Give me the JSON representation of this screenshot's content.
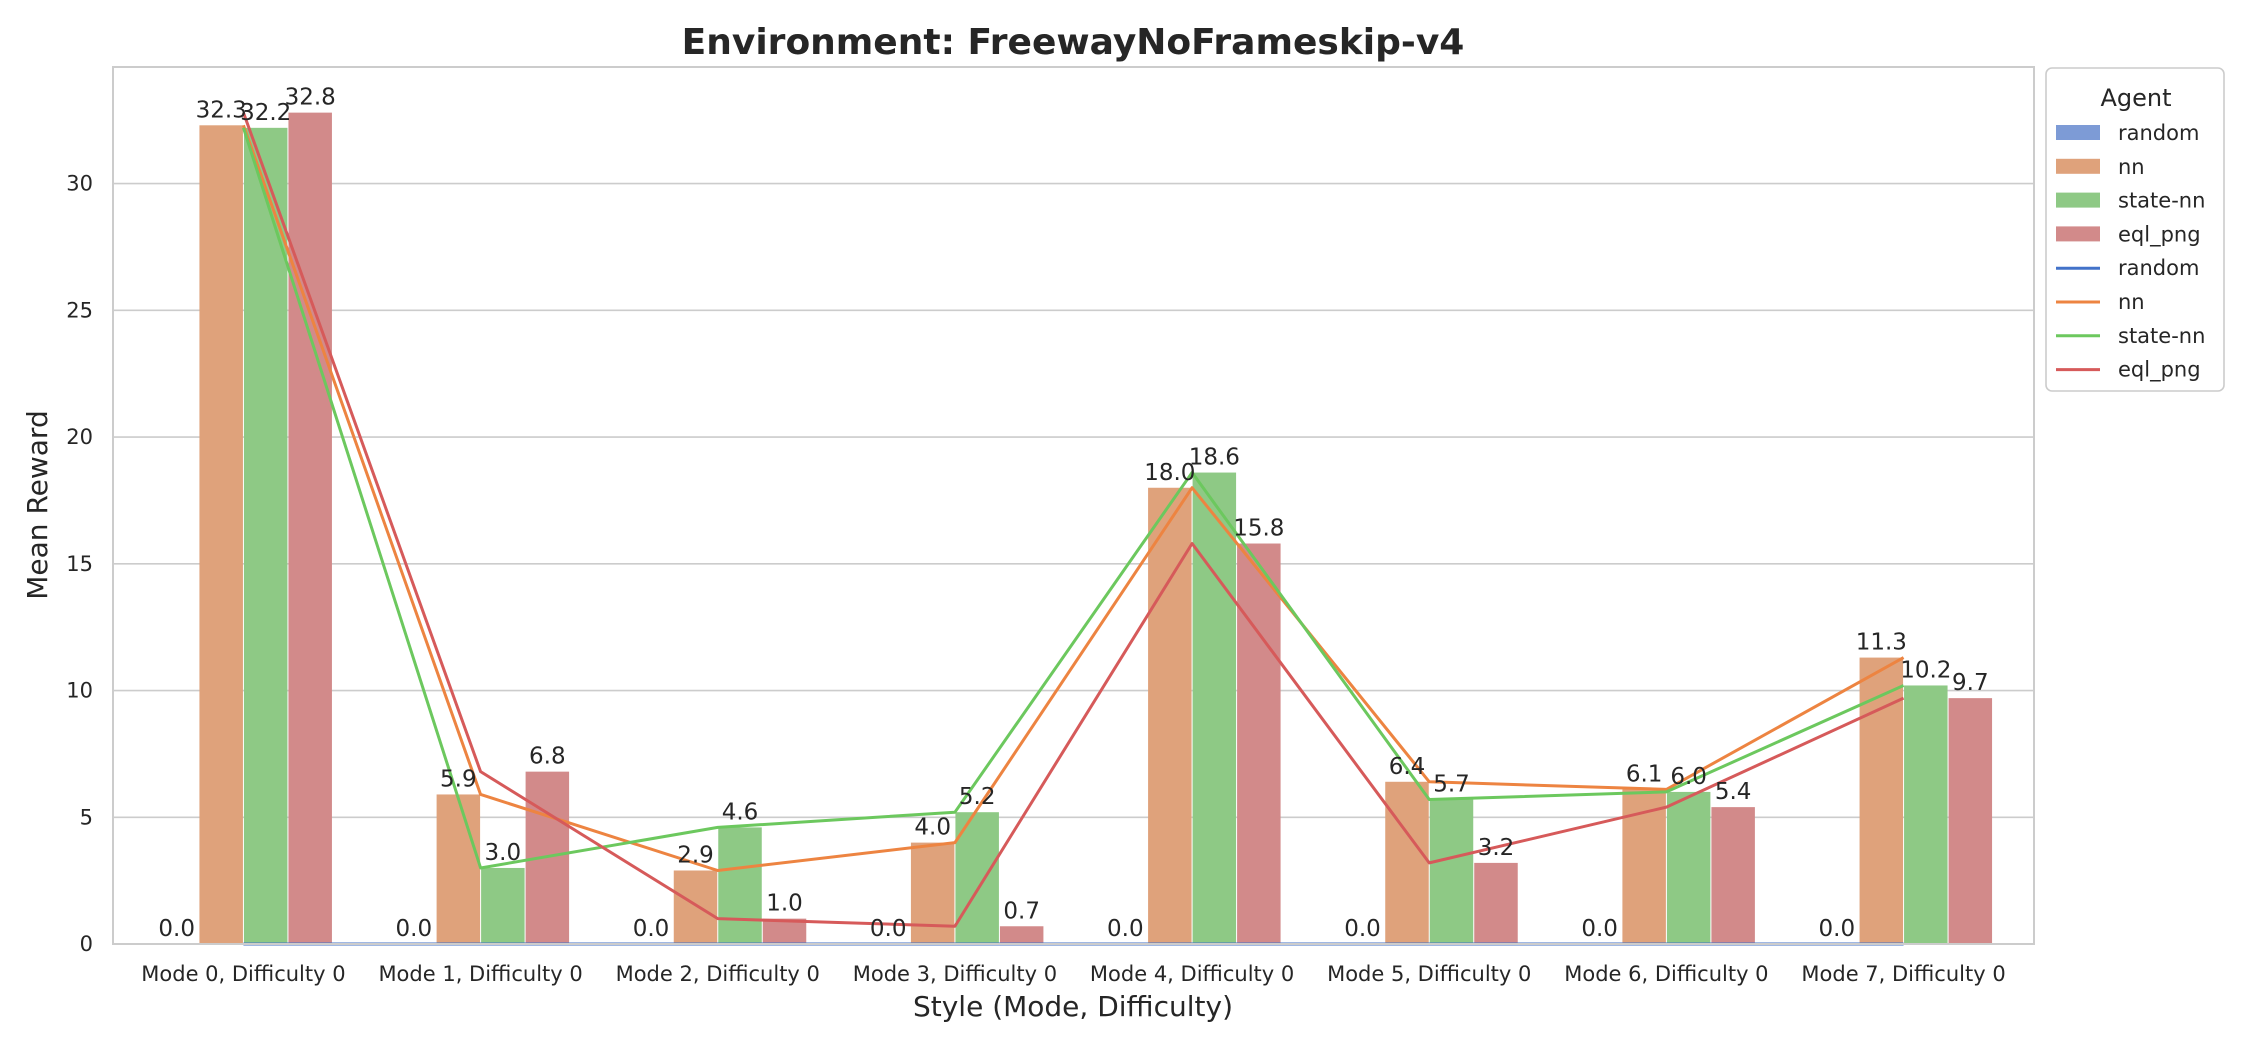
{
  "chart_data": {
    "type": "bar",
    "title": "Environment: FreewayNoFrameskip-v4",
    "xlabel": "Style (Mode, Difficulty)",
    "ylabel": "Mean Reward",
    "ylim": [
      0,
      34.6
    ],
    "yticks": [
      0,
      5,
      10,
      15,
      20,
      25,
      30
    ],
    "grid": true,
    "legend_placement": "outside-right",
    "legend_title": "Agent",
    "categories": [
      "Mode 0, Difficulty 0",
      "Mode 1, Difficulty 0",
      "Mode 2, Difficulty 0",
      "Mode 3, Difficulty 0",
      "Mode 4, Difficulty 0",
      "Mode 5, Difficulty 0",
      "Mode 6, Difficulty 0",
      "Mode 7, Difficulty 0"
    ],
    "series": [
      {
        "name": "random",
        "bar_color": "#7d9bd6",
        "line_color": "#4272c9",
        "values": [
          0.0,
          0.0,
          0.0,
          0.0,
          0.0,
          0.0,
          0.0,
          0.0
        ],
        "labels": [
          "0.0",
          "0.0",
          "0.0",
          "0.0",
          "0.0",
          "0.0",
          "0.0",
          "0.0"
        ]
      },
      {
        "name": "nn",
        "bar_color": "#dfa27b",
        "line_color": "#ed8441",
        "values": [
          32.3,
          5.9,
          2.9,
          4.0,
          18.0,
          6.4,
          6.1,
          11.3
        ],
        "labels": [
          "32.3",
          "5.9",
          "2.9",
          "4.0",
          "18.0",
          "6.4",
          "6.1",
          "11.3"
        ]
      },
      {
        "name": "state-nn",
        "bar_color": "#8ec985",
        "line_color": "#6cc85e",
        "values": [
          32.2,
          3.0,
          4.6,
          5.2,
          18.6,
          5.7,
          6.0,
          10.2
        ],
        "labels": [
          "32.2",
          "3.0",
          "4.6",
          "5.2",
          "18.6",
          "5.7",
          "6.0",
          "10.2"
        ]
      },
      {
        "name": "eql_png",
        "bar_color": "#d28a8a",
        "line_color": "#d65a5a",
        "values": [
          32.8,
          6.8,
          1.0,
          0.7,
          15.8,
          3.2,
          5.4,
          9.7
        ],
        "labels": [
          "32.8",
          "6.8",
          "1.0",
          "0.7",
          "15.8",
          "3.2",
          "5.4",
          "9.7"
        ]
      }
    ],
    "zero_bar_labels": [
      "0.0",
      "0.0",
      "0.0",
      "0.0",
      "0.0",
      "0.0",
      "0.0",
      "0.0"
    ]
  }
}
